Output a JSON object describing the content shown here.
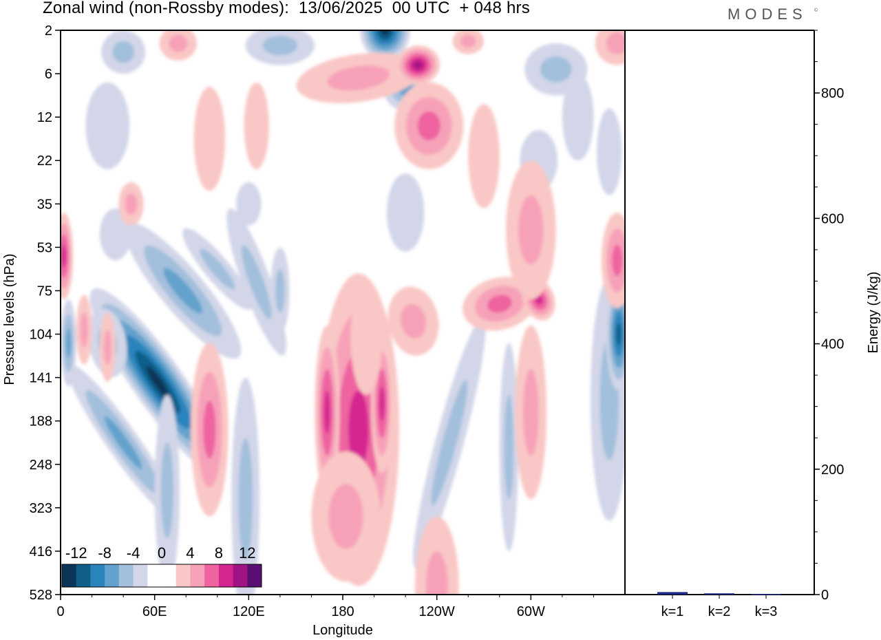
{
  "header": {
    "title": "Zonal wind (non-Rossby modes):  13/06/2025  00 UTC  + 048 hrs",
    "brand": "MODES",
    "brand_mark": "©"
  },
  "chart_data": [
    {
      "type": "heatmap",
      "title": "Zonal wind (non-Rossby modes):  13/06/2025  00 UTC  + 048 hrs",
      "xlabel": "Longitude",
      "ylabel": "Pressure levels (hPa)",
      "x_ticks": [
        "0",
        "60E",
        "120E",
        "180",
        "120W",
        "60W"
      ],
      "x_tick_values": [
        0,
        60,
        120,
        180,
        240,
        300
      ],
      "xlim": [
        0,
        360
      ],
      "y_ticks": [
        "2",
        "6",
        "12",
        "22",
        "35",
        "53",
        "75",
        "104",
        "141",
        "188",
        "248",
        "323",
        "416",
        "528"
      ],
      "y_order": "top-to-bottom",
      "grid": false,
      "colorbar": {
        "labels": [
          "-12",
          "-8",
          "-4",
          "0",
          "4",
          "8",
          "12"
        ],
        "placement": "bottom-left inside",
        "colors": [
          "#0b3556",
          "#0f5f8a",
          "#2b84bb",
          "#63a2cc",
          "#a2bfdc",
          "#d2d6e8",
          "#ffffff",
          "#ffffff",
          "#f9c7c5",
          "#f7a1b9",
          "#ee63a0",
          "#d52590",
          "#a01383",
          "#5a0f73"
        ]
      },
      "features": [
        {
          "kind": "min",
          "lon": 62,
          "level": "141",
          "value": -14
        },
        {
          "kind": "min",
          "lon": 210,
          "level": "2",
          "value": -12
        },
        {
          "kind": "min",
          "lon": 357,
          "level": "104",
          "value": -10
        },
        {
          "kind": "max",
          "lon": 190,
          "level": "141",
          "value": 9
        },
        {
          "kind": "max",
          "lon": 228,
          "level": "4",
          "value": 10
        },
        {
          "kind": "max",
          "lon": 305,
          "level": "75",
          "value": 8
        },
        {
          "kind": "max",
          "lon": 2,
          "level": "53",
          "value": 8
        }
      ]
    },
    {
      "type": "bar",
      "ylabel": "Energy (J/kg)",
      "categories": [
        "k=1",
        "k=2",
        "k=3"
      ],
      "values": [
        4,
        2,
        1
      ],
      "ylim": [
        0,
        900
      ],
      "y_ticks": [
        "0",
        "200",
        "400",
        "600",
        "800"
      ],
      "bar_color": "#1f2a8a"
    }
  ]
}
